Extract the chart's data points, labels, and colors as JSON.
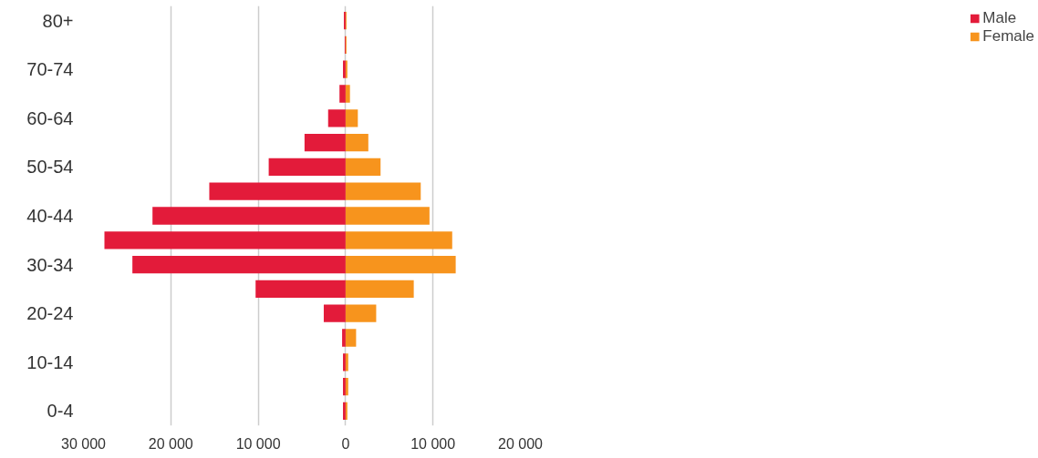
{
  "chart_data": {
    "type": "bar",
    "orientation": "horizontal",
    "categories": [
      "80+",
      null,
      "70-74",
      null,
      "60-64",
      null,
      "50-54",
      null,
      "40-44",
      null,
      "30-34",
      null,
      "20-24",
      null,
      "10-14",
      null,
      "0-4"
    ],
    "series": [
      {
        "name": "Male",
        "color": "#e31b3a",
        "values": [
          -200,
          -100,
          -300,
          -700,
          -2000,
          -4700,
          -8800,
          -15600,
          -22100,
          -27600,
          -24400,
          -10300,
          -2500,
          -400,
          -300,
          -300,
          -300
        ]
      },
      {
        "name": "Female",
        "color": "#f7941d",
        "values": [
          100,
          100,
          200,
          500,
          1400,
          2600,
          4000,
          8600,
          9600,
          12200,
          12600,
          7800,
          3500,
          1200,
          300,
          300,
          200
        ]
      }
    ],
    "xlim": [
      -30000,
      20000
    ],
    "xticks": [
      {
        "value": -30000,
        "label": "30 000"
      },
      {
        "value": -20000,
        "label": "20 000"
      },
      {
        "value": -10000,
        "label": "10 000"
      },
      0,
      {
        "value": 10000,
        "label": "10 000"
      },
      {
        "value": 20000,
        "label": "20 000"
      }
    ],
    "stacked": true,
    "grid": "x",
    "legend": "top right"
  }
}
